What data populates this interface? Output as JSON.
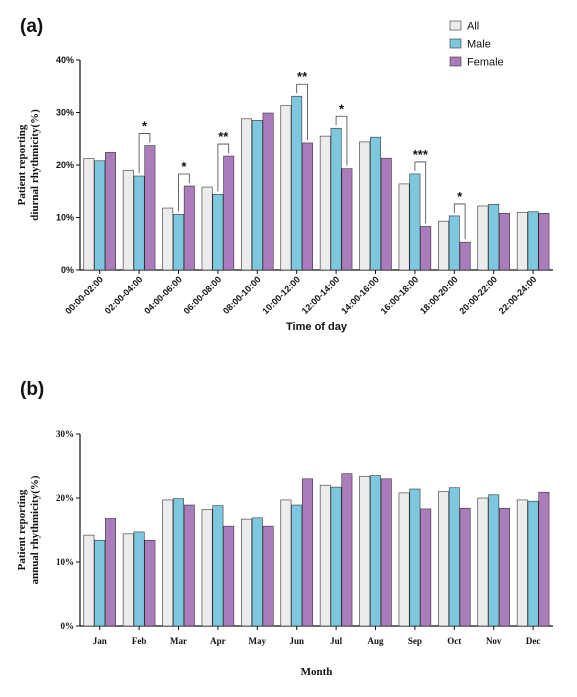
{
  "colors": {
    "All": "#ececec",
    "Male": "#7ec8df",
    "Female": "#ab7cbc"
  },
  "chart_data": [
    {
      "panel": "(a)",
      "type": "bar",
      "xlabel": "Time of day",
      "ylabel": [
        "Patient reporting",
        "diurnal rhythmicity(%)"
      ],
      "ylim": [
        0,
        40
      ],
      "yticks": [
        "0%",
        "10%",
        "20%",
        "30%",
        "40%"
      ],
      "legend": [
        "All",
        "Male",
        "Female"
      ],
      "legend_position": "top-right",
      "grid": false,
      "categories": [
        "00:00-02:00",
        "02:00-04:00",
        "04:00-06:00",
        "06:00-08:00",
        "08:00-10:00",
        "10:00-12:00",
        "12:00-14:00",
        "14:00-16:00",
        "16:00-18:00",
        "18:00-20:00",
        "20:00-22:00",
        "22:00-24:00"
      ],
      "series": [
        {
          "name": "All",
          "values": [
            21.2,
            19.0,
            11.8,
            15.8,
            28.8,
            31.3,
            25.5,
            24.4,
            16.4,
            9.3,
            12.2,
            11.0
          ]
        },
        {
          "name": "Male",
          "values": [
            20.8,
            17.9,
            10.6,
            14.4,
            28.5,
            33.1,
            27.0,
            25.3,
            18.3,
            10.3,
            12.5,
            11.1
          ]
        },
        {
          "name": "Female",
          "values": [
            22.4,
            23.7,
            16.0,
            21.7,
            29.9,
            24.2,
            19.3,
            21.3,
            8.3,
            5.3,
            10.8,
            10.8
          ]
        }
      ],
      "significance": [
        {
          "category_index": 1,
          "label": "*"
        },
        {
          "category_index": 2,
          "label": "*"
        },
        {
          "category_index": 3,
          "label": "**"
        },
        {
          "category_index": 5,
          "label": "**"
        },
        {
          "category_index": 6,
          "label": "*"
        },
        {
          "category_index": 8,
          "label": "***"
        },
        {
          "category_index": 9,
          "label": "*"
        }
      ]
    },
    {
      "panel": "(b)",
      "type": "bar",
      "xlabel": "Month",
      "ylabel": [
        "Patient reporting",
        "annual rhythmicity(%)"
      ],
      "ylim": [
        0,
        30
      ],
      "yticks": [
        "0%",
        "10%",
        "20%",
        "30%"
      ],
      "grid": false,
      "categories": [
        "Jan",
        "Feb",
        "Mar",
        "Apr",
        "May",
        "Jun",
        "Jul",
        "Aug",
        "Sep",
        "Oct",
        "Nov",
        "Dec"
      ],
      "series": [
        {
          "name": "All",
          "values": [
            14.2,
            14.4,
            19.7,
            18.2,
            16.7,
            19.7,
            22.0,
            23.4,
            20.8,
            21.0,
            20.0,
            19.7
          ]
        },
        {
          "name": "Male",
          "values": [
            13.4,
            14.7,
            19.9,
            18.8,
            16.9,
            18.9,
            21.7,
            23.5,
            21.4,
            21.6,
            20.5,
            19.5
          ]
        },
        {
          "name": "Female",
          "values": [
            16.8,
            13.4,
            18.9,
            15.6,
            15.6,
            23.0,
            23.8,
            23.0,
            18.3,
            18.4,
            18.4,
            20.9
          ]
        }
      ]
    }
  ]
}
